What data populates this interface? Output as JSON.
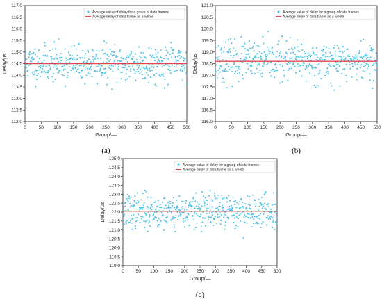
{
  "colors": {
    "points": "#4fc3e8",
    "mean_line": "#e04848",
    "axes": "#222222"
  },
  "chart_data": [
    {
      "type": "scatter",
      "panel": "(a)",
      "title": "",
      "xlabel": "Group/—",
      "ylabel": "Delay/μs",
      "xlim": [
        0,
        500
      ],
      "ylim": [
        112.0,
        117.0
      ],
      "x_ticks": [
        0,
        50,
        100,
        150,
        200,
        250,
        300,
        350,
        400,
        450,
        500
      ],
      "y_ticks": [
        112.0,
        112.5,
        113.0,
        113.5,
        114.0,
        114.5,
        115.0,
        115.5,
        116.0,
        116.5,
        117.0
      ],
      "y_tick_decimals": 1,
      "legend_position": "top-right",
      "series": [
        {
          "name": "Average value of delay for a group of data frames",
          "kind": "scatter",
          "n_points": 500,
          "x_range": [
            1,
            500
          ],
          "center": 114.5,
          "spread": 0.65,
          "min": 112.75,
          "max": 116.4,
          "seed": 11
        },
        {
          "name": "Average delay of data frame as a whole",
          "kind": "hline",
          "value": 114.5
        }
      ]
    },
    {
      "type": "scatter",
      "panel": "(b)",
      "title": "",
      "xlabel": "Group/—",
      "ylabel": "Delay/μs",
      "xlim": [
        0,
        500
      ],
      "ylim": [
        116.0,
        121.0
      ],
      "x_ticks": [
        0,
        50,
        100,
        150,
        200,
        250,
        300,
        350,
        400,
        450,
        500
      ],
      "y_ticks": [
        116.0,
        116.5,
        117.0,
        117.5,
        118.0,
        118.5,
        119.0,
        119.5,
        120.0,
        120.5,
        121.0
      ],
      "y_tick_decimals": 1,
      "legend_position": "top-right",
      "series": [
        {
          "name": "Average value of delay for a group of data frames",
          "kind": "scatter",
          "n_points": 500,
          "x_range": [
            1,
            500
          ],
          "center": 118.6,
          "spread": 0.7,
          "min": 116.65,
          "max": 120.45,
          "seed": 23
        },
        {
          "name": "Average delay of data frame as a whole",
          "kind": "hline",
          "value": 118.6
        }
      ]
    },
    {
      "type": "scatter",
      "panel": "(c)",
      "title": "",
      "xlabel": "Group/—",
      "ylabel": "Delay/μs",
      "xlim": [
        0,
        500
      ],
      "ylim": [
        119.0,
        125.0
      ],
      "x_ticks": [
        0,
        50,
        100,
        150,
        200,
        250,
        300,
        350,
        400,
        450,
        500
      ],
      "y_ticks": [
        119.0,
        119.5,
        120.0,
        120.5,
        121.0,
        121.5,
        122.0,
        122.5,
        123.0,
        123.5,
        124.0,
        124.5,
        125.0
      ],
      "y_tick_decimals": 1,
      "legend_position": "top-right",
      "series": [
        {
          "name": "Average value of delay for a group of data frames",
          "kind": "scatter",
          "n_points": 500,
          "x_range": [
            1,
            500
          ],
          "center": 122.05,
          "spread": 0.8,
          "min": 119.8,
          "max": 124.0,
          "seed": 37
        },
        {
          "name": "Average delay of data frame as a whole",
          "kind": "hline",
          "value": 122.05
        }
      ]
    }
  ]
}
